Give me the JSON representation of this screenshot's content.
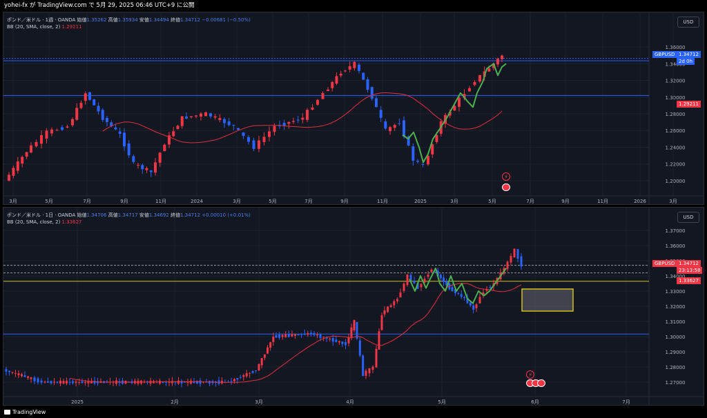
{
  "topbar": {
    "text": "yohei-fx が TradingView.com で 5月 29, 2025 06:46 UTC+9 に公開"
  },
  "footer": {
    "brand": "TradingView"
  },
  "panels": [
    {
      "id": "weekly",
      "legend": {
        "symbol": "ポンド／米ドル · 1週 · OANDA",
        "o_label": "始値",
        "o": "1.35262",
        "h_label": "高値",
        "h": "1.35934",
        "l_label": "安値",
        "l": "1.34494",
        "c_label": "終値",
        "c": "1.34712",
        "chg": "−0.00681 (−0.50%)",
        "bb_label": "BB (20, SMA, close, 2)",
        "bb_value": "1.29211"
      },
      "currency": "USD",
      "price_ticks": [
        "1.36000",
        "1.34000",
        "1.32000",
        "1.30000",
        "1.28000",
        "1.26000",
        "1.24000",
        "1.22000",
        "1.20000"
      ],
      "symbol_tag": "GBPUSD",
      "price_tag": "1.34712",
      "countdown": "2d 0h",
      "bb_tag": "1.29211",
      "time_ticks": [
        "3月",
        "5月",
        "7月",
        "9月",
        "11月",
        "2024",
        "3月",
        "5月",
        "7月",
        "9月",
        "11月",
        "2025",
        "3月",
        "5月",
        "7月",
        "9月",
        "11月",
        "2026",
        "3月"
      ]
    },
    {
      "id": "daily",
      "legend": {
        "symbol": "ポンド／米ドル · 1日 · OANDA",
        "o_label": "始値",
        "o": "1.34706",
        "h_label": "高値",
        "h": "1.34717",
        "l_label": "安値",
        "l": "1.34692",
        "c_label": "終値",
        "c": "1.34712",
        "chg": "+0.00010 (+0.01%)",
        "bb_label": "BB (20, SMA, close, 2)",
        "bb_value": "1.33627"
      },
      "currency": "USD",
      "price_ticks": [
        "1.37000",
        "1.36000",
        "1.35000",
        "1.34000",
        "1.33000",
        "1.32000",
        "1.31000",
        "1.30000",
        "1.29000",
        "1.28000",
        "1.27000"
      ],
      "symbol_tag": "GBPUSD",
      "price_tag": "1.34712",
      "countdown": "23:13:58",
      "bb_tag": "1.33627",
      "time_ticks": [
        "2025",
        "2月",
        "3月",
        "4月",
        "5月",
        "6月",
        "7月"
      ]
    }
  ],
  "colors": {
    "up": "#f23645",
    "down": "#2962ff",
    "bb": "#e0313d",
    "zigzag": "#4caf50",
    "hline": "#2962ff",
    "yellow": "#d4c11b",
    "bg": "#131722"
  }
}
